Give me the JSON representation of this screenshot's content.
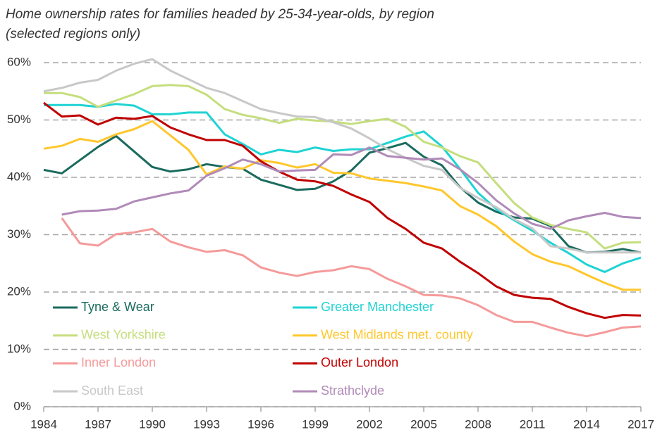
{
  "chart_data": {
    "type": "line",
    "title": "Home ownership rates for families headed by 25-34-year-olds, by region",
    "subtitle": "(selected regions only)",
    "x": [
      1984,
      1985,
      1986,
      1987,
      1988,
      1989,
      1990,
      1991,
      1992,
      1993,
      1994,
      1995,
      1996,
      1997,
      1998,
      1999,
      2000,
      2001,
      2002,
      2003,
      2004,
      2005,
      2006,
      2007,
      2008,
      2009,
      2010,
      2011,
      2012,
      2013,
      2014,
      2015,
      2016,
      2017
    ],
    "xlim": [
      1984,
      2017
    ],
    "xticks": [
      1984,
      1987,
      1990,
      1993,
      1996,
      1999,
      2002,
      2005,
      2008,
      2011,
      2014,
      2017
    ],
    "ylim": [
      0,
      60
    ],
    "yticks": [
      {
        "value": 0,
        "label": "0%"
      },
      {
        "value": 10,
        "label": "10%"
      },
      {
        "value": 20,
        "label": "20%"
      },
      {
        "value": 30,
        "label": "30%"
      },
      {
        "value": 40,
        "label": "40%"
      },
      {
        "value": 50,
        "label": "50%"
      },
      {
        "value": 60,
        "label": "60%"
      }
    ],
    "grid": true,
    "series": [
      {
        "name": "Tyne & Wear",
        "color": "#1a6b5e",
        "values": [
          41.3,
          40.7,
          43,
          45.3,
          47.2,
          44.5,
          41.8,
          41,
          41.4,
          42.3,
          41.8,
          41.5,
          39.6,
          38.7,
          37.8,
          38,
          39.3,
          41.2,
          44.3,
          45.1,
          46,
          43.6,
          42.1,
          38.3,
          35.6,
          34,
          33,
          32.8,
          31.5,
          28,
          26.9,
          27,
          27.5,
          26.9
        ]
      },
      {
        "name": "Greater Manchester",
        "color": "#1fd3d3",
        "values": [
          52.6,
          52.6,
          52.6,
          52.3,
          52.8,
          52.5,
          51,
          51,
          51.3,
          51.3,
          47.5,
          45.8,
          44,
          44.8,
          44.4,
          45.2,
          44.6,
          44.9,
          44.9,
          46,
          47.1,
          48,
          45.4,
          41.5,
          37.3,
          34.5,
          32.5,
          30.7,
          28.6,
          26.8,
          24.8,
          23.5,
          25,
          26
        ]
      },
      {
        "name": "West Yorkshire",
        "color": "#c5de7e",
        "values": [
          54.7,
          54.7,
          54,
          52.3,
          53.4,
          54.5,
          55.9,
          56.1,
          55.9,
          54.4,
          51.9,
          50.9,
          50.3,
          49.5,
          50.2,
          49.9,
          49.7,
          49.3,
          49.8,
          50.2,
          48.8,
          46.2,
          45.2,
          43.7,
          42.6,
          39,
          35.5,
          33,
          31.7,
          31,
          30.4,
          27.6,
          28.6,
          28.7
        ]
      },
      {
        "name": "West Midlands met. county",
        "color": "#ffc72c",
        "values": [
          45,
          45.5,
          46.7,
          46.2,
          47.5,
          48.4,
          49.8,
          47.3,
          44.8,
          40.5,
          41.9,
          41.5,
          43,
          42.5,
          41.7,
          42.3,
          40.8,
          40.7,
          39.8,
          39.4,
          39,
          38.4,
          37.7,
          35,
          33.5,
          31.5,
          28.8,
          26.6,
          25.3,
          24.5,
          23,
          21.6,
          20.4,
          20.4
        ]
      },
      {
        "name": "Inner London",
        "color": "#f59a9a",
        "values": [
          null,
          32.9,
          28.5,
          28.1,
          30.1,
          30.4,
          31,
          28.8,
          27.8,
          27,
          27.3,
          26.4,
          24.3,
          23.4,
          22.8,
          23.5,
          23.8,
          24.5,
          24,
          22.3,
          21,
          19.5,
          19.4,
          18.9,
          17.7,
          16,
          14.8,
          14.8,
          13.8,
          12.9,
          12.3,
          13,
          13.8,
          14
        ]
      },
      {
        "name": "Outer London",
        "color": "#c00000",
        "values": [
          53,
          50.6,
          50.8,
          49.2,
          50.4,
          50.2,
          50.7,
          48.7,
          47.5,
          46.5,
          46.5,
          45.5,
          42.8,
          41,
          39.6,
          39.3,
          38.5,
          37,
          35.7,
          32.9,
          31,
          28.6,
          27.6,
          25.3,
          23.3,
          21,
          19.5,
          19,
          18.8,
          17.4,
          16.3,
          15.5,
          16,
          15.9
        ]
      },
      {
        "name": "South East",
        "color": "#c8c8c8",
        "values": [
          55,
          55.6,
          56.5,
          57,
          58.6,
          59.8,
          60.6,
          58.6,
          57.1,
          55.6,
          54.7,
          53.3,
          51.9,
          51.2,
          50.6,
          50.5,
          49.6,
          48.5,
          46.8,
          44.9,
          43.4,
          42,
          41.3,
          38.2,
          36.4,
          34.8,
          32.7,
          31.1,
          28,
          27.6,
          26.9,
          26.9,
          26.9,
          26.9
        ]
      },
      {
        "name": "Strathclyde",
        "color": "#b08ab8",
        "values": [
          null,
          33.5,
          34.1,
          34.2,
          34.5,
          35.8,
          36.5,
          37.2,
          37.7,
          40.3,
          41.6,
          43.1,
          42.3,
          41,
          41.2,
          41.3,
          44,
          43.9,
          45.2,
          43.7,
          43.4,
          43.1,
          43.3,
          41.4,
          39,
          36,
          33.7,
          31.9,
          31,
          32.5,
          33.2,
          33.8,
          33.1,
          32.9
        ]
      }
    ]
  }
}
